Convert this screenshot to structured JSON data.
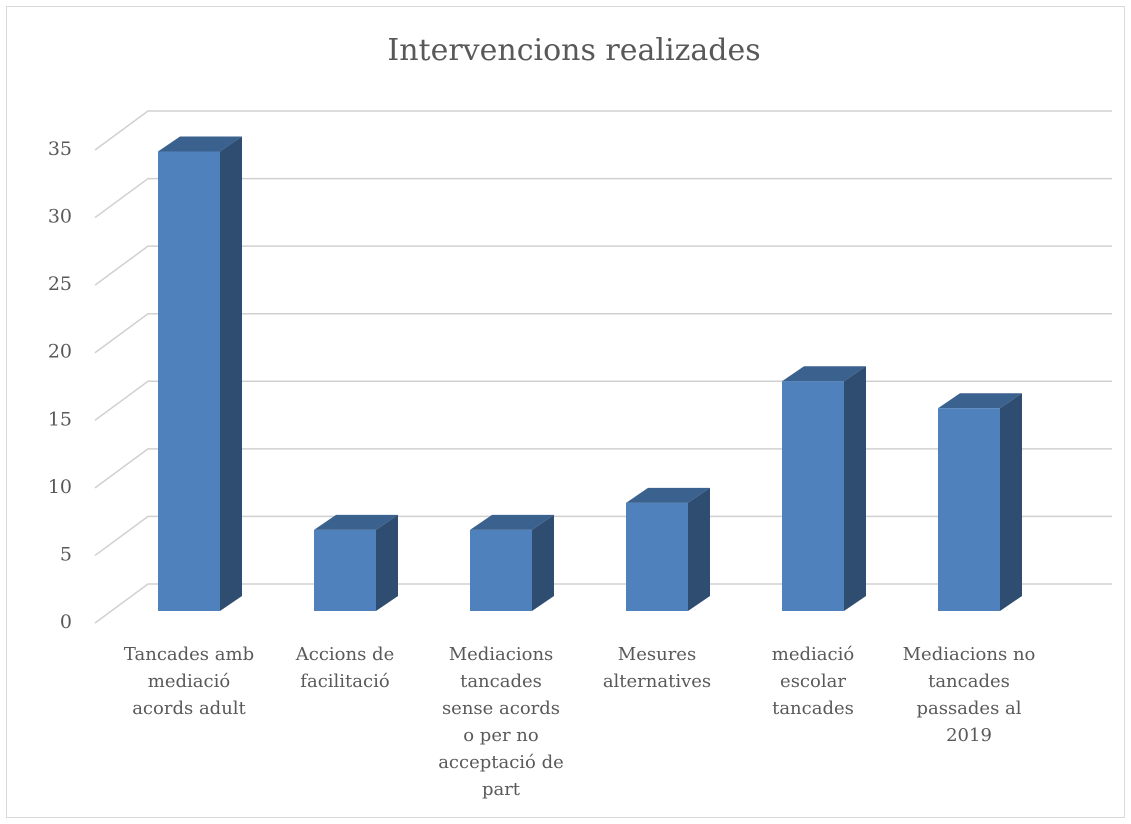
{
  "chart_data": {
    "type": "bar3d",
    "title": "Intervencions realizades",
    "categories": [
      "Tancades amb mediació acords adult",
      "Accions de facilitació",
      "Mediacions tancades sense acords o per no acceptació de part",
      "Mesures alternatives",
      "mediació escolar tancades",
      "Mediacions no tancades passades al 2019"
    ],
    "values": [
      34,
      6,
      6,
      8,
      17,
      15
    ],
    "color": "#4f81bd",
    "ylim": [
      0,
      35
    ],
    "yticks": [
      0,
      5,
      10,
      15,
      20,
      25,
      30,
      35
    ],
    "grid": true
  }
}
